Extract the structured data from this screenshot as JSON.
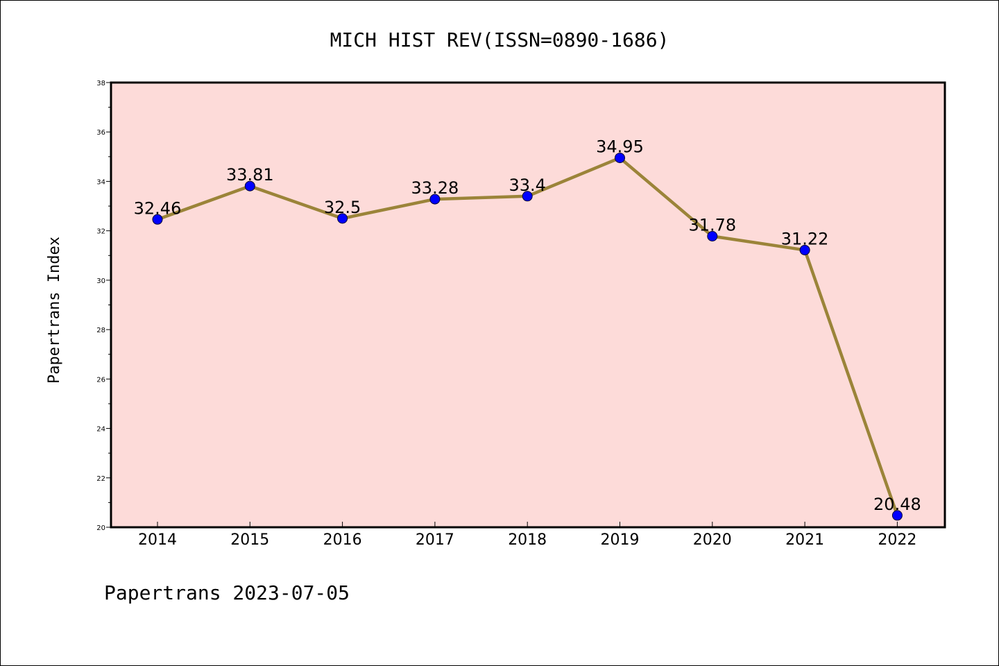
{
  "chart_data": {
    "type": "line",
    "title": "MICH HIST REV(ISSN=0890-1686)",
    "xlabel": "",
    "ylabel": "Papertrans Index",
    "categories": [
      "2014",
      "2015",
      "2016",
      "2017",
      "2018",
      "2019",
      "2020",
      "2021",
      "2022"
    ],
    "series": [
      {
        "values": [
          32.46,
          33.81,
          32.5,
          33.28,
          33.4,
          34.95,
          31.78,
          31.22,
          20.48
        ],
        "data_labels": [
          "32.46",
          "33.81",
          "32.5",
          "33.28",
          "33.4",
          "34.95",
          "31.78",
          "31.22",
          "20.48"
        ]
      }
    ],
    "ylim": [
      20,
      38
    ],
    "yticks": [
      "20",
      "22",
      "24",
      "26",
      "28",
      "30",
      "32",
      "34",
      "36",
      "38"
    ],
    "grid": false,
    "legend": "none",
    "colors": {
      "plot_background": "#fddbd9",
      "line": "#9b8439",
      "marker": "#0000ff",
      "frame": "#000000"
    }
  },
  "footer": {
    "text": "Papertrans 2023-07-05"
  }
}
